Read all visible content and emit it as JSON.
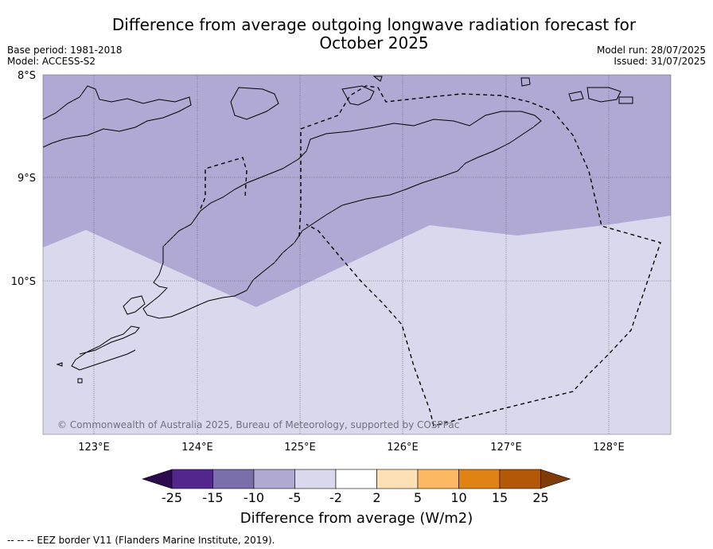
{
  "title_line1": "Difference from average outgoing longwave radiation forecast for",
  "title_line2": "October 2025",
  "base_period": "Base period: 1981-2018",
  "model": "Model: ACCESS-S2",
  "model_run": "Model run: 28/07/2025",
  "issued": "Issued: 31/07/2025",
  "lat_labels": [
    "8°S",
    "9°S",
    "10°S"
  ],
  "lon_labels": [
    "123°E",
    "124°E",
    "125°E",
    "126°E",
    "127°E",
    "128°E"
  ],
  "copyright": "© Commonwealth of Australia 2025, Bureau of Meteorology, supported by COSPPac",
  "colorbar": {
    "ticks": [
      "-25",
      "-15",
      "-10",
      "-5",
      "-2",
      "2",
      "5",
      "10",
      "15",
      "25"
    ],
    "colors": [
      "#2b0a4e",
      "#54278f",
      "#7c6dab",
      "#b0a9d3",
      "#d9d8ec",
      "#ffffff",
      "#fee0b6",
      "#fdb863",
      "#e08214",
      "#b35806",
      "#7f3b08"
    ],
    "label": "Difference from average (W/m2)"
  },
  "legend_note": "--  --  -- EEZ border V11 (Flanders Marine Institute, 2019).",
  "map": {
    "lat_range": [
      "8°S",
      "11.5°S"
    ],
    "lon_range": [
      "122.5°E",
      "128.6°E"
    ],
    "fill_colors": {
      "band_-10_-5": "#b0a9d3",
      "band_-5_-2": "#d9d8ec"
    }
  }
}
